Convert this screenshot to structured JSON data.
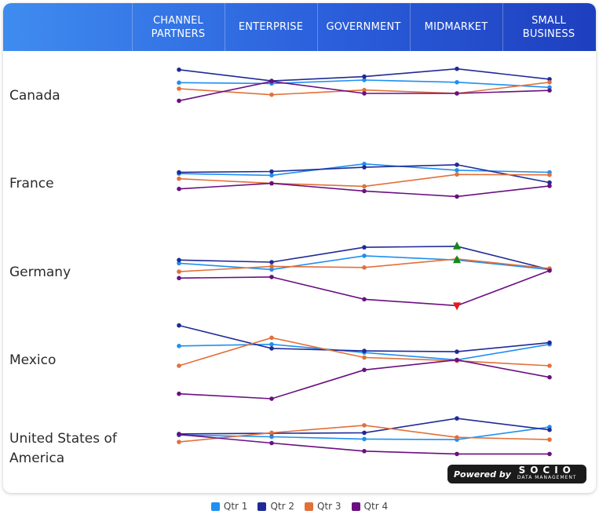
{
  "header": {
    "columns": [
      "CHANNEL\nPARTNERS",
      "ENTERPRISE",
      "GOVERNMENT",
      "MIDMARKET",
      "SMALL\nBUSINESS"
    ]
  },
  "rows": [
    "Canada",
    "France",
    "Germany",
    "Mexico",
    "United States of\nAmerica"
  ],
  "legend": {
    "items": [
      {
        "label": "Qtr 1",
        "color": "#1e90f0"
      },
      {
        "label": "Qtr 2",
        "color": "#1f2a96"
      },
      {
        "label": "Qtr 3",
        "color": "#e2703a"
      },
      {
        "label": "Qtr 4",
        "color": "#6a0f80"
      }
    ]
  },
  "powered": {
    "by": "Powered by",
    "brand": "SOCIO",
    "sub": "DATA MANAGEMENT"
  },
  "chart_data": {
    "type": "line",
    "layout": "small-multiples",
    "categories": [
      "CHANNEL PARTNERS",
      "ENTERPRISE",
      "GOVERNMENT",
      "MIDMARKET",
      "SMALL BUSINESS"
    ],
    "panels": [
      {
        "row": "Canada",
        "series": [
          {
            "name": "Qtr 1",
            "values": [
              0.54,
              0.52,
              0.6,
              0.55,
              0.43
            ]
          },
          {
            "name": "Qtr 2",
            "values": [
              0.84,
              0.58,
              0.68,
              0.86,
              0.62
            ]
          },
          {
            "name": "Qtr 3",
            "values": [
              0.4,
              0.26,
              0.37,
              0.29,
              0.55
            ]
          },
          {
            "name": "Qtr 4",
            "values": [
              0.12,
              0.57,
              0.29,
              0.29,
              0.36
            ]
          }
        ]
      },
      {
        "row": "France",
        "series": [
          {
            "name": "Qtr 1",
            "values": [
              0.57,
              0.53,
              0.8,
              0.65,
              0.6
            ]
          },
          {
            "name": "Qtr 2",
            "values": [
              0.6,
              0.62,
              0.72,
              0.78,
              0.36
            ]
          },
          {
            "name": "Qtr 3",
            "values": [
              0.45,
              0.34,
              0.27,
              0.55,
              0.54
            ]
          },
          {
            "name": "Qtr 4",
            "values": [
              0.21,
              0.34,
              0.16,
              0.03,
              0.28
            ]
          }
        ]
      },
      {
        "row": "Germany",
        "series": [
          {
            "name": "Qtr 1",
            "values": [
              0.59,
              0.53,
              0.66,
              0.62,
              0.53
            ]
          },
          {
            "name": "Qtr 2",
            "values": [
              0.62,
              0.6,
              0.74,
              0.75,
              0.53
            ]
          },
          {
            "name": "Qtr 3",
            "values": [
              0.51,
              0.56,
              0.55,
              0.63,
              0.54
            ]
          },
          {
            "name": "Qtr 4",
            "values": [
              0.45,
              0.46,
              0.25,
              0.19,
              0.52
            ]
          }
        ],
        "markers": [
          {
            "series": "Qtr 2",
            "category": "MIDMARKET",
            "type": "up",
            "color": "#138a13"
          },
          {
            "series": "Qtr 1",
            "category": "MIDMARKET",
            "type": "up",
            "color": "#138a13"
          },
          {
            "series": "Qtr 4",
            "category": "MIDMARKET",
            "type": "down",
            "color": "#e81818"
          }
        ]
      },
      {
        "row": "Mexico",
        "series": [
          {
            "name": "Qtr 1",
            "values": [
              0.64,
              0.66,
              0.56,
              0.47,
              0.66
            ]
          },
          {
            "name": "Qtr 2",
            "values": [
              0.89,
              0.61,
              0.58,
              0.57,
              0.68
            ]
          },
          {
            "name": "Qtr 3",
            "values": [
              0.4,
              0.74,
              0.5,
              0.46,
              0.4
            ]
          },
          {
            "name": "Qtr 4",
            "values": [
              0.06,
              0.0,
              0.35,
              0.47,
              0.26
            ]
          }
        ]
      },
      {
        "row": "United States of America",
        "series": [
          {
            "name": "Qtr 1",
            "values": [
              0.53,
              0.5,
              0.46,
              0.45,
              0.67
            ]
          },
          {
            "name": "Qtr 2",
            "values": [
              0.55,
              0.56,
              0.57,
              0.82,
              0.62
            ]
          },
          {
            "name": "Qtr 3",
            "values": [
              0.41,
              0.57,
              0.7,
              0.49,
              0.45
            ]
          },
          {
            "name": "Qtr 4",
            "values": [
              0.54,
              0.39,
              0.25,
              0.2,
              0.2
            ]
          }
        ]
      }
    ]
  }
}
